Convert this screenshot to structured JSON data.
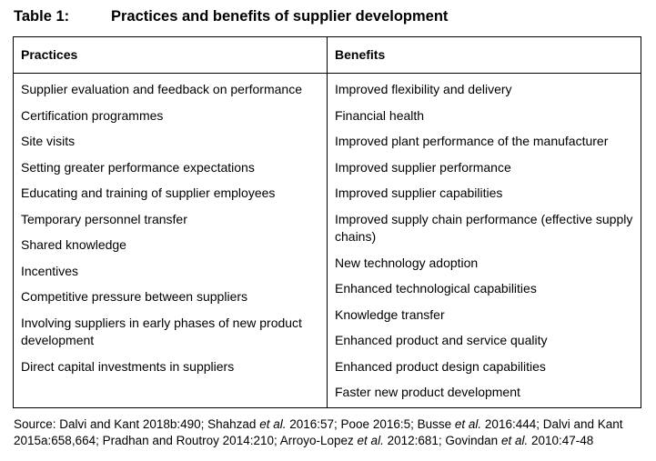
{
  "caption": {
    "label": "Table 1:",
    "title": "Practices and benefits of supplier development"
  },
  "table": {
    "headers": [
      "Practices",
      "Benefits"
    ],
    "practices": [
      "Supplier evaluation and feedback on performance",
      "Certification programmes",
      "Site visits",
      "Setting greater performance expectations",
      "Educating and training of supplier employees",
      "Temporary personnel transfer",
      "Shared knowledge",
      "Incentives",
      "Competitive pressure between suppliers",
      "Involving suppliers in early phases of new product development",
      "Direct capital investments in suppliers"
    ],
    "benefits": [
      "Improved flexibility and delivery",
      "Financial health",
      "Improved plant performance of the manufacturer",
      "Improved supplier performance",
      "Improved supplier capabilities",
      "Improved supply chain performance (effective supply chains)",
      "New technology adoption",
      "Enhanced technological capabilities",
      "Knowledge transfer",
      "Enhanced product and service quality",
      "Enhanced product design capabilities",
      "Faster new product development"
    ]
  },
  "source": [
    "Source: Dalvi and Kant 2018b:490; Shahzad ",
    "et al.",
    " 2016:57; Pooe 2016:5; Busse ",
    "et al.",
    " 2016:444; Dalvi and Kant 2015a:658,664; Pradhan and Routroy 2014:210; Arroyo-Lopez ",
    "et al.",
    " 2012:681; Govindan ",
    "et al.",
    " 2010:47-48"
  ]
}
